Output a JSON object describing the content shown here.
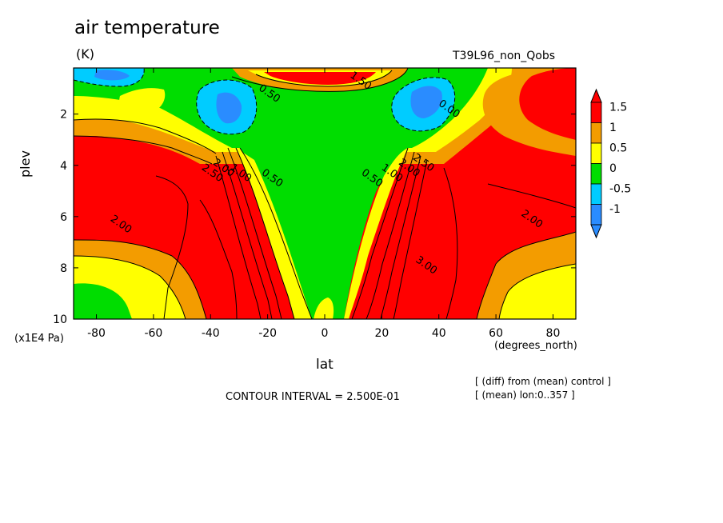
{
  "chart_data": {
    "type": "heatmap",
    "title": "air temperature",
    "units": "(K)",
    "run_label": "T39L96_non_Qobs",
    "xlabel": "lat",
    "xunits": "(degrees_north)",
    "ylabel": "plev",
    "yunits": "(x1E4 Pa)",
    "xlim": [
      -88,
      88
    ],
    "ylim": [
      10,
      0.2
    ],
    "x_ticks": [
      "-80",
      "-60",
      "-40",
      "-20",
      "0",
      "20",
      "40",
      "60",
      "80"
    ],
    "x_tick_values": [
      -80,
      -60,
      -40,
      -20,
      0,
      20,
      40,
      60,
      80
    ],
    "y_ticks": [
      "2",
      "4",
      "6",
      "8",
      "10"
    ],
    "y_tick_values": [
      2,
      4,
      6,
      8,
      10
    ],
    "colorbar": {
      "labels": [
        "1.5",
        "1",
        "0.5",
        "0",
        "-0.5",
        "-1"
      ],
      "label_values": [
        1.5,
        1,
        0.5,
        0,
        -0.5,
        -1
      ],
      "colors": [
        "#ff0000",
        "#f39c00",
        "#ffff00",
        "#00dd00",
        "#00ccff",
        "#2a8cff"
      ]
    },
    "contour_labels": [
      {
        "text": "0.50",
        "lat": -20,
        "plev": 1.3
      },
      {
        "text": "0.00",
        "lat": 43,
        "plev": 1.9
      },
      {
        "text": "2.50",
        "lat": -40,
        "plev": 4.4
      },
      {
        "text": "2.00",
        "lat": -36,
        "plev": 4.2
      },
      {
        "text": "1.00",
        "lat": -30,
        "plev": 4.4
      },
      {
        "text": "0.50",
        "lat": -19,
        "plev": 4.6
      },
      {
        "text": "0.50",
        "lat": 16,
        "plev": 4.6
      },
      {
        "text": "1.00",
        "lat": 23,
        "plev": 4.4
      },
      {
        "text": "2.00",
        "lat": 29,
        "plev": 4.2
      },
      {
        "text": "2.50",
        "lat": 34,
        "plev": 4.0
      },
      {
        "text": "2.00",
        "lat": -72,
        "plev": 6.4
      },
      {
        "text": "2.00",
        "lat": 72,
        "plev": 6.2
      },
      {
        "text": "3.00",
        "lat": 35,
        "plev": 8.0
      },
      {
        "text": "1.50",
        "lat": 12,
        "plev": 0.8
      }
    ],
    "contour_interval_label": "CONTOUR INTERVAL = 2.500E-01",
    "notes": [
      "[ (diff) from (mean) control ]",
      "[ (mean) lon:0..357 ]"
    ]
  }
}
